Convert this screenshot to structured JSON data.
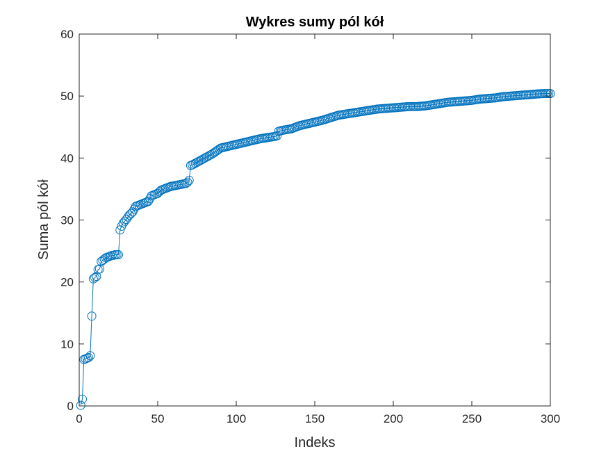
{
  "chart_data": {
    "type": "line",
    "title": "Wykres sumy pól kół",
    "xlabel": "Indeks",
    "ylabel": "Suma pól kół",
    "xlim": [
      0,
      300
    ],
    "ylim": [
      0,
      60
    ],
    "xticks": [
      0,
      50,
      100,
      150,
      200,
      250,
      300
    ],
    "yticks": [
      0,
      10,
      20,
      30,
      40,
      50,
      60
    ],
    "grid": false,
    "marker": "circle",
    "series_color": "#0072BD",
    "axis_color": "#262626",
    "series": [
      {
        "anchors": [
          [
            1,
            0.1
          ],
          [
            2,
            1.1
          ],
          [
            3,
            7.5
          ],
          [
            4,
            7.6
          ],
          [
            5,
            7.7
          ],
          [
            6,
            7.8
          ],
          [
            7,
            8.1
          ],
          [
            8,
            14.5
          ],
          [
            9,
            20.5
          ],
          [
            10,
            20.7
          ],
          [
            11,
            20.9
          ],
          [
            12,
            22.0
          ],
          [
            13,
            22.1
          ],
          [
            14,
            23.3
          ],
          [
            15,
            23.5
          ],
          [
            16,
            23.7
          ],
          [
            17,
            23.9
          ],
          [
            18,
            24.0
          ],
          [
            19,
            24.1
          ],
          [
            20,
            24.2
          ],
          [
            21,
            24.3
          ],
          [
            22,
            24.3
          ],
          [
            23,
            24.4
          ],
          [
            24,
            24.4
          ],
          [
            25,
            24.4
          ],
          [
            26,
            28.4
          ],
          [
            27,
            29.0
          ],
          [
            28,
            29.5
          ],
          [
            29,
            29.8
          ],
          [
            30,
            30.1
          ],
          [
            31,
            30.5
          ],
          [
            32,
            30.8
          ],
          [
            34,
            31.3
          ],
          [
            36,
            32.2
          ],
          [
            38,
            32.4
          ],
          [
            40,
            32.6
          ],
          [
            42,
            32.8
          ],
          [
            44,
            33.0
          ],
          [
            46,
            33.9
          ],
          [
            48,
            34.1
          ],
          [
            50,
            34.3
          ],
          [
            52,
            34.8
          ],
          [
            54,
            35.0
          ],
          [
            56,
            35.2
          ],
          [
            58,
            35.4
          ],
          [
            60,
            35.5
          ],
          [
            62,
            35.6
          ],
          [
            64,
            35.7
          ],
          [
            66,
            35.8
          ],
          [
            68,
            35.9
          ],
          [
            69,
            36.1
          ],
          [
            70,
            36.4
          ],
          [
            71,
            38.8
          ],
          [
            72,
            38.9
          ],
          [
            75,
            39.3
          ],
          [
            80,
            40.0
          ],
          [
            85,
            40.7
          ],
          [
            90,
            41.6
          ],
          [
            95,
            41.9
          ],
          [
            100,
            42.2
          ],
          [
            105,
            42.5
          ],
          [
            110,
            42.8
          ],
          [
            115,
            43.1
          ],
          [
            120,
            43.3
          ],
          [
            125,
            43.5
          ],
          [
            126,
            43.6
          ],
          [
            127,
            44.3
          ],
          [
            130,
            44.5
          ],
          [
            135,
            44.7
          ],
          [
            140,
            45.2
          ],
          [
            145,
            45.5
          ],
          [
            150,
            45.8
          ],
          [
            155,
            46.1
          ],
          [
            160,
            46.5
          ],
          [
            165,
            46.9
          ],
          [
            170,
            47.1
          ],
          [
            175,
            47.3
          ],
          [
            180,
            47.5
          ],
          [
            185,
            47.7
          ],
          [
            190,
            47.9
          ],
          [
            195,
            48.0
          ],
          [
            200,
            48.1
          ],
          [
            205,
            48.2
          ],
          [
            210,
            48.3
          ],
          [
            215,
            48.3
          ],
          [
            220,
            48.4
          ],
          [
            225,
            48.6
          ],
          [
            230,
            48.8
          ],
          [
            235,
            49.0
          ],
          [
            240,
            49.1
          ],
          [
            245,
            49.2
          ],
          [
            250,
            49.3
          ],
          [
            255,
            49.5
          ],
          [
            260,
            49.6
          ],
          [
            265,
            49.7
          ],
          [
            270,
            49.9
          ],
          [
            275,
            50.0
          ],
          [
            280,
            50.1
          ],
          [
            285,
            50.2
          ],
          [
            290,
            50.3
          ],
          [
            295,
            50.4
          ],
          [
            300,
            50.4
          ]
        ]
      }
    ]
  }
}
